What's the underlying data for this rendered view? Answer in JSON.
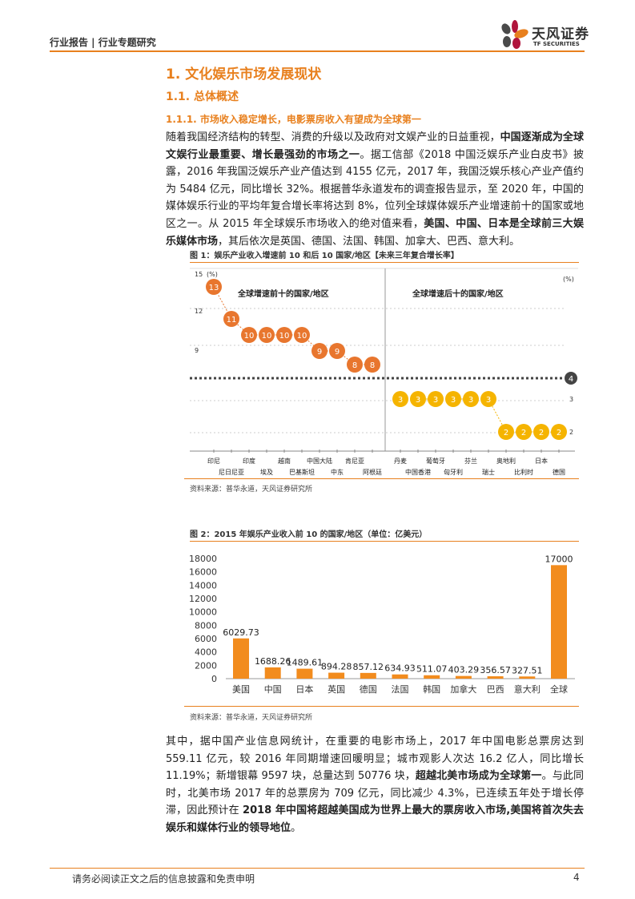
{
  "header": {
    "title": "行业报告 | 行业专题研究",
    "logo_cn": "天风证券",
    "logo_en": "TF SECURITIES"
  },
  "headings": {
    "h1": "1. 文化娱乐市场发展现状",
    "h2": "1.1. 总体概述",
    "h3": "1.1.1. 市场收入稳定增长，电影票房收入有望成为全球第一"
  },
  "paragraph1": [
    {
      "text": "随着我国经济结构的转型、消费的升级以及政府对文娱产业的日益重视，",
      "bold": false
    },
    {
      "text": "中国逐渐成为全球文娱行业最重要、增长最强劲的市场之一",
      "bold": true
    },
    {
      "text": "。据工信部《2018 中国泛娱乐产业白皮书》披露，2016 年我国泛娱乐产业产值达到 4155 亿元，2017 年，我国泛娱乐核心产业产值约为 5484 亿元，同比增长 32%。根据普华永道发布的调查报告显示，至 2020 年，中国的媒体娱乐行业的平均年复合增长率将达到 8%，位列全球媒体娱乐产业增速前十的国家或地区之一。从 2015 年全球娱乐市场收入的绝对值来看，",
      "bold": false
    },
    {
      "text": "美国、中国、日本是全球前三大娱乐媒体市场",
      "bold": true
    },
    {
      "text": "，其后依次是英国、德国、法国、韩国、加拿大、巴西、意大利。",
      "bold": false
    }
  ],
  "figure1": {
    "title": "图 1：娱乐产业收入增速前 10 和后 10 国家/地区【未来三年复合增长率】",
    "source": "资料来源：普华永道，天风证券研究所",
    "chart_data": {
      "type": "scatter",
      "left_panel_title": "全球增速前十的国家/地区",
      "right_panel_title": "全球增速后十的国家/地区",
      "unit": "(%)",
      "left_ticks": [
        "15",
        "12",
        "9"
      ],
      "right_ticks": [
        "3",
        "2"
      ],
      "reference_line": {
        "value": 4,
        "label": "4"
      },
      "top10": {
        "categories": [
          "印尼",
          "尼日尼亚",
          "印度",
          "埃及",
          "越南",
          "巴基斯坦",
          "中国大陆",
          "中东",
          "肯尼亚",
          "阿根廷"
        ],
        "values": [
          13,
          11,
          10,
          10,
          10,
          10,
          9,
          9,
          8,
          8
        ],
        "color": "#e8762e"
      },
      "bottom10": {
        "categories": [
          "丹麦",
          "中国香港",
          "葡萄牙",
          "匈牙利",
          "芬兰",
          "瑞士",
          "奥地利",
          "比利时",
          "日本",
          "德国"
        ],
        "values": [
          3,
          3,
          3,
          3,
          3,
          3,
          2,
          2,
          2,
          2
        ],
        "color": "#f5b400"
      }
    }
  },
  "figure2": {
    "title": "图 2：2015 年娱乐产业收入前 10 的国家/地区（单位：亿美元）",
    "source": "资料来源：普华永道，天风证券研究所",
    "chart_data": {
      "type": "bar",
      "categories": [
        "美国",
        "中国",
        "日本",
        "英国",
        "德国",
        "法国",
        "韩国",
        "加拿大",
        "巴西",
        "意大利",
        "全球"
      ],
      "values": [
        6029.73,
        1688.26,
        1489.61,
        894.28,
        857.12,
        634.93,
        511.07,
        403.29,
        356.57,
        327.51,
        17000
      ],
      "value_labels": [
        "6029.73",
        "1688.26",
        "1489.61",
        "894.28",
        "857.12",
        "634.93",
        "511.07",
        "403.29",
        "356.57",
        "327.51",
        "17000"
      ],
      "ylim": [
        0,
        18000
      ],
      "yticks": [
        "0",
        "2000",
        "4000",
        "6000",
        "8000",
        "10000",
        "12000",
        "14000",
        "16000",
        "18000"
      ],
      "color": "#f28c1e",
      "grid": false
    }
  },
  "paragraph2": [
    {
      "text": "其中，据中国产业信息网统计，在重要的电影市场上，2017 年中国电影总票房达到 559.11 亿元，较 2016 年同期增速回暖明显；城市观影人次达 16.2 亿人，同比增长 11.19%；新增银幕 9597 块，总量达到 50776 块，",
      "bold": false
    },
    {
      "text": "超越北美市场成为全球第一",
      "bold": true
    },
    {
      "text": "。与此同时，北美市场 2017 年的总票房为 709 亿元，同比减少 4.3%，已连续五年处于增长停滞，因此预计在 ",
      "bold": false
    },
    {
      "text": "2018 年中国将超越美国成为世界上最大的票房收入市场,美国将首次失去娱乐和媒体行业的领导地位",
      "bold": true
    },
    {
      "text": "。",
      "bold": false
    }
  ],
  "footer": {
    "disclaimer": "请务必阅读正文之后的信息披露和免责申明",
    "page": "4"
  }
}
